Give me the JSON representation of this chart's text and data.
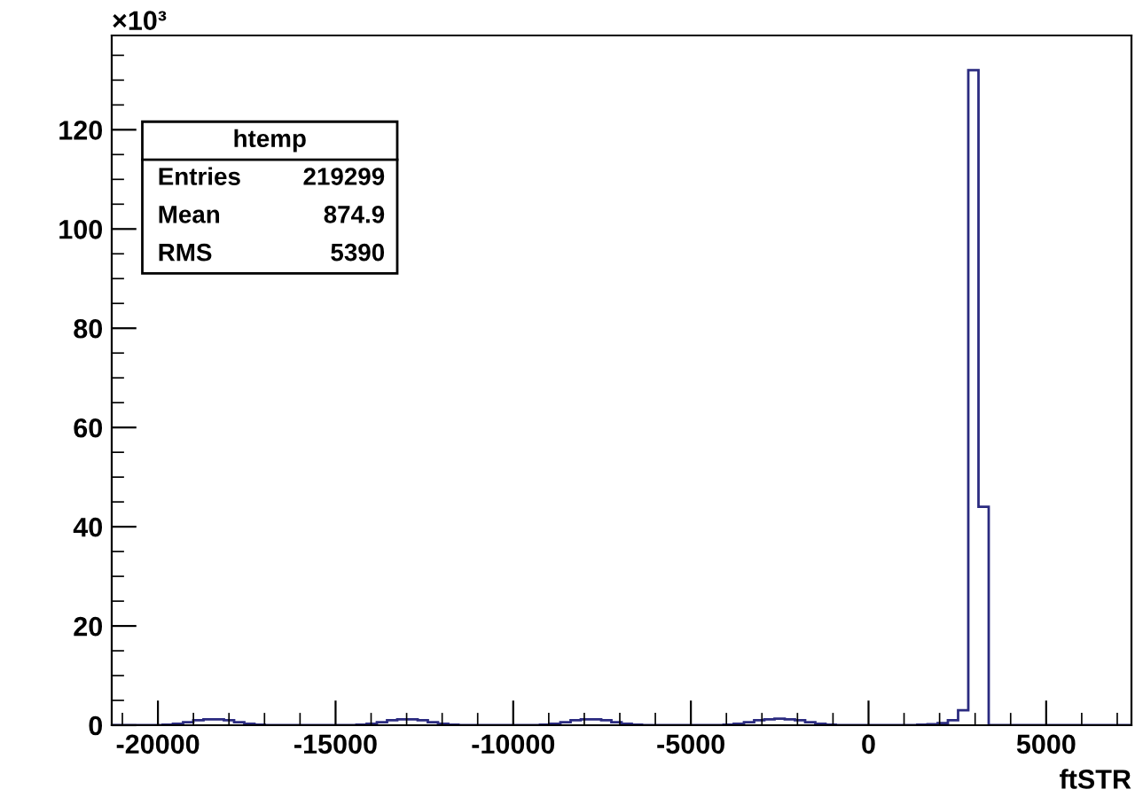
{
  "chart_data": {
    "type": "histogram",
    "xlabel": "ftSTR",
    "ylabel": "×10³",
    "annotations": [
      "htemp",
      "Entries",
      "219299",
      "Mean",
      "874.9",
      "RMS",
      "5390"
    ],
    "bins": [
      -21300,
      -21013,
      -20726,
      -20439,
      -20152,
      -19865,
      -19578,
      -19291,
      -19004,
      -18717,
      -18430,
      -18143,
      -17856,
      -17569,
      -17282,
      -16995,
      -16708,
      -16421,
      -16134,
      -15847,
      -15560,
      -15273,
      -14986,
      -14699,
      -14412,
      -14125,
      -13838,
      -13551,
      -13264,
      -12977,
      -12690,
      -12403,
      -12116,
      -11829,
      -11542,
      -11255,
      -10968,
      -10681,
      -10394,
      -10107,
      -9820,
      -9533,
      -9246,
      -8959,
      -8672,
      -8385,
      -8098,
      -7811,
      -7524,
      -7237,
      -6950,
      -6663,
      -6376,
      -6089,
      -5802,
      -5515,
      -5228,
      -4941,
      -4654,
      -4367,
      -4080,
      -3793,
      -3506,
      -3219,
      -2932,
      -2645,
      -2358,
      -2071,
      -1784,
      -1497,
      -1210,
      -923,
      -636,
      -349,
      -62,
      225,
      512,
      799,
      1086,
      1373,
      1660,
      1947,
      2234,
      2521,
      2808,
      3095,
      3382,
      3669,
      3956,
      4243,
      4530,
      4817,
      5104,
      5391,
      5678,
      5965,
      6252,
      6539,
      6826,
      7113,
      7400
    ],
    "values": [
      0,
      0,
      0,
      0,
      0,
      0.1,
      0.3,
      0.6,
      1.0,
      1.2,
      1.2,
      1.0,
      0.6,
      0.3,
      0.1,
      0,
      0,
      0,
      0,
      0,
      0,
      0,
      0,
      0,
      0.1,
      0.3,
      0.6,
      1.0,
      1.2,
      1.2,
      1.0,
      0.6,
      0.3,
      0.1,
      0,
      0,
      0,
      0,
      0,
      0,
      0,
      0,
      0.1,
      0.3,
      0.6,
      1.0,
      1.2,
      1.2,
      1.0,
      0.6,
      0.3,
      0.1,
      0,
      0,
      0,
      0,
      0,
      0,
      0,
      0,
      0.1,
      0.3,
      0.6,
      1.0,
      1.2,
      1.3,
      1.2,
      1.0,
      0.6,
      0.3,
      0.1,
      0,
      0,
      0,
      0,
      0,
      0,
      0,
      0,
      0.1,
      0.2,
      0.4,
      1.0,
      3.0,
      132,
      44,
      0,
      0,
      0,
      0,
      0,
      0,
      0,
      0,
      0,
      0,
      0,
      0,
      0,
      0
    ],
    "color": "#2b2b80",
    "xlim": [
      -21300,
      7400
    ],
    "ylim": [
      0,
      139
    ],
    "xticks": [
      -20000,
      -15000,
      -10000,
      -5000,
      0,
      5000
    ],
    "yticks": [
      0,
      20,
      40,
      60,
      80,
      100,
      120
    ],
    "grid": false,
    "legend": false
  }
}
